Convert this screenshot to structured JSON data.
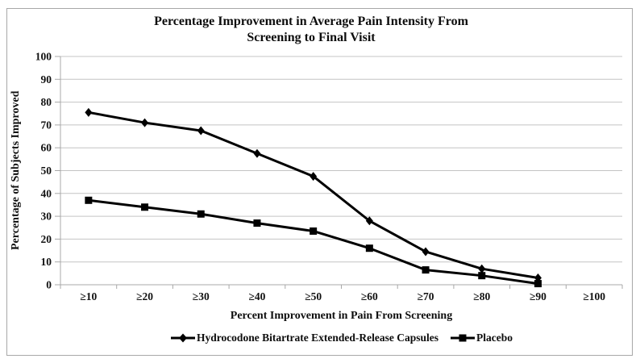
{
  "figure": {
    "border_color": "#a8a8a8",
    "background": "#ffffff"
  },
  "colors": {
    "gridline": "#c4c4c4",
    "axis": "#a8a8a8",
    "text": "#0d0d0d",
    "series_line": "#000000"
  },
  "chart_data": {
    "type": "line",
    "title": "Percentage Improvement in Average Pain Intensity From Screening to Final Visit",
    "title_lines": [
      "Percentage Improvement in Average Pain Intensity From",
      "Screening to Final Visit"
    ],
    "xlabel": "Percent Improvement in Pain From Screening",
    "ylabel": "Percentage of Subjects Improved",
    "categories": [
      "≥10",
      "≥20",
      "≥30",
      "≥40",
      "≥50",
      "≥60",
      "≥70",
      "≥80",
      "≥90",
      "≥100"
    ],
    "series": [
      {
        "name": "Hydrocodone Bitartrate Extended-Release Capsules",
        "marker": "diamond",
        "color": "#000000",
        "values": [
          75.5,
          71,
          67.5,
          57.5,
          47.5,
          28,
          14.5,
          7,
          3,
          null
        ]
      },
      {
        "name": "Placebo",
        "marker": "square",
        "color": "#000000",
        "values": [
          37,
          34,
          31,
          27,
          23.5,
          16,
          6.5,
          4,
          0.5,
          null
        ]
      }
    ],
    "ylim": [
      0,
      100
    ],
    "ytick_step": 10,
    "grid": true,
    "legend_position": "bottom"
  }
}
